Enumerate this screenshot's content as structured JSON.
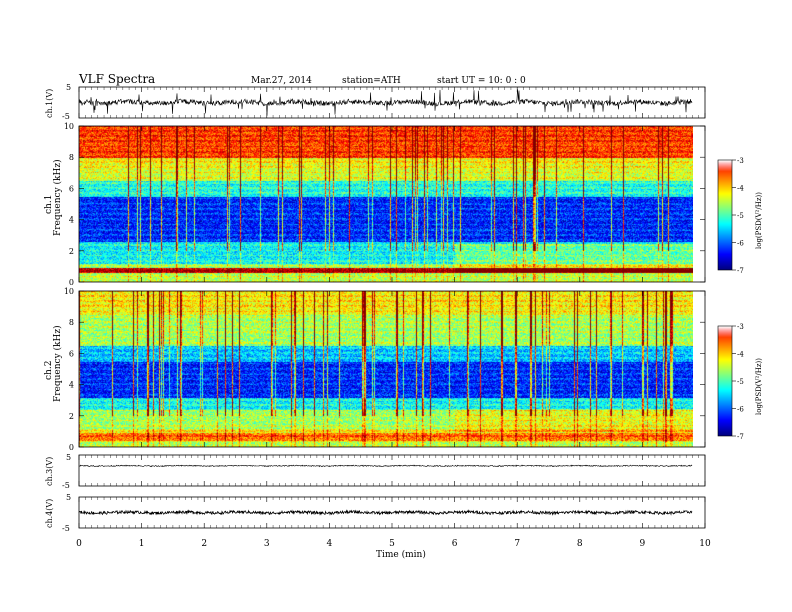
{
  "header": {
    "title": "VLF  Spectra",
    "date": "Mar.27, 2014",
    "station": "station=ATH",
    "start": "start  UT  =    10: 0  : 0"
  },
  "chart_data": [
    {
      "type": "line",
      "ylabel": "ch.1(V)",
      "ylim": [
        -5,
        5
      ],
      "yticks": [
        "5",
        "-5"
      ],
      "xlim": [
        0,
        10
      ],
      "series": [
        {
          "trace": "ch.1 waveform",
          "level": 0,
          "variability": "high",
          "spikes": "frequent"
        }
      ]
    },
    {
      "type": "heatmap",
      "ylabel": "Frequency  (kHz)",
      "channel_label": "ch.1",
      "ylim": [
        0,
        10
      ],
      "yticks": [
        "0",
        "2",
        "4",
        "6",
        "8",
        "10"
      ],
      "xlim": [
        0,
        10
      ],
      "colorbar": {
        "label": "log(PSD(V²/Hz))",
        "ticks": [
          "-3",
          "-4",
          "-5",
          "-6",
          "-7"
        ],
        "range": [
          -7,
          -3
        ]
      }
    },
    {
      "type": "heatmap",
      "ylabel": "Frequency  (kHz)",
      "channel_label": "ch.2",
      "ylim": [
        0,
        10
      ],
      "yticks": [
        "0",
        "2",
        "4",
        "6",
        "8",
        "10"
      ],
      "xlim": [
        0,
        10
      ],
      "colorbar": {
        "label": "log(PSD(V²/Hz))",
        "ticks": [
          "-3",
          "-4",
          "-5",
          "-6",
          "-7"
        ],
        "range": [
          -7,
          -3
        ]
      }
    },
    {
      "type": "line",
      "ylabel": "ch.3(V)",
      "ylim": [
        -5,
        5
      ],
      "yticks": [
        "5",
        "-5"
      ],
      "xlim": [
        0,
        10
      ],
      "series": [
        {
          "trace": "ch.3 waveform",
          "level": 1.5,
          "variability": "low"
        }
      ]
    },
    {
      "type": "line",
      "ylabel": "ch.4(V)",
      "ylim": [
        -5,
        5
      ],
      "yticks": [
        "5",
        "-5"
      ],
      "xlim": [
        0,
        10
      ],
      "series": [
        {
          "trace": "ch.4 waveform",
          "level": 0,
          "variability": "thick"
        }
      ]
    }
  ],
  "xaxis": {
    "label": "Time  (min)",
    "ticks": [
      "0",
      "1",
      "2",
      "3",
      "4",
      "5",
      "6",
      "7",
      "8",
      "9",
      "10"
    ],
    "data_end_min": 9.8
  },
  "colors": {
    "jet": [
      "#000080",
      "#0000ff",
      "#0080ff",
      "#00ffff",
      "#80ff80",
      "#ffff00",
      "#ff8000",
      "#ff0000",
      "#ffffff"
    ]
  }
}
